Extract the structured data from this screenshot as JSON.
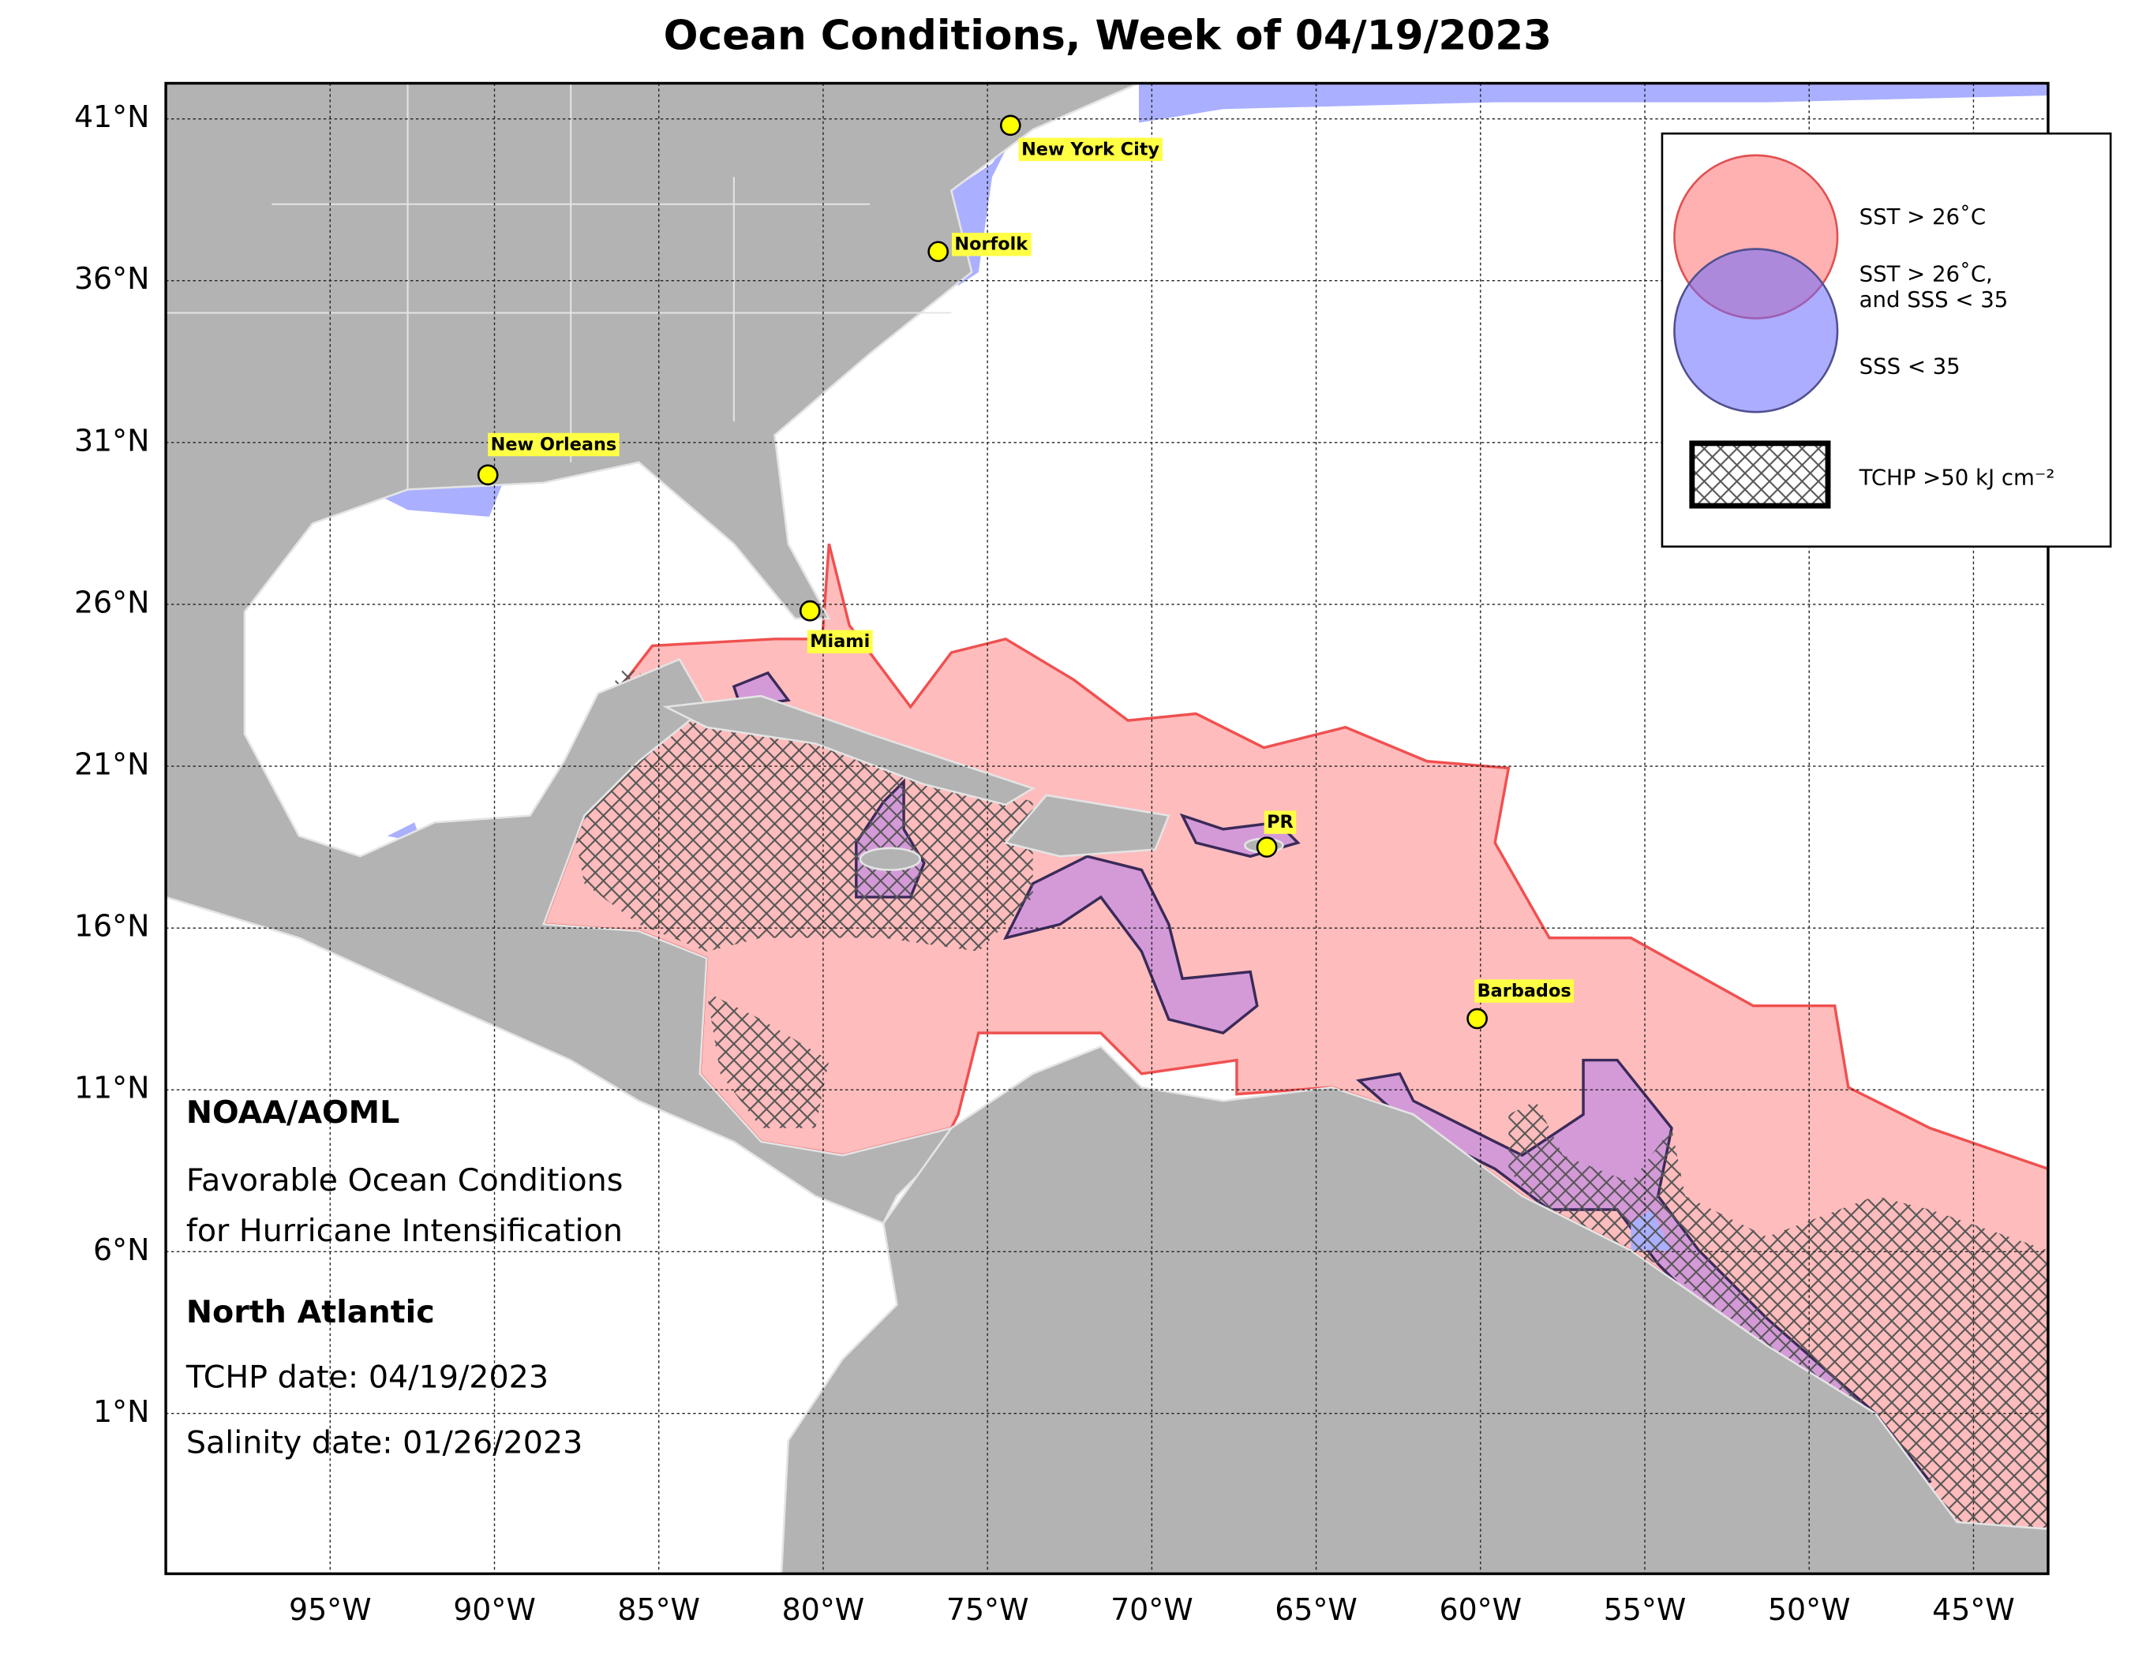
{
  "title": "Ocean Conditions, Week of 04/19/2023",
  "map": {
    "lon_range": [
      -100,
      -42.73
    ],
    "lat_range": [
      -3.95,
      42.1
    ],
    "lon_ticks": [
      {
        "value": -95,
        "label": "95°W"
      },
      {
        "value": -90,
        "label": "90°W"
      },
      {
        "value": -85,
        "label": "85°W"
      },
      {
        "value": -80,
        "label": "80°W"
      },
      {
        "value": -75,
        "label": "75°W"
      },
      {
        "value": -70,
        "label": "70°W"
      },
      {
        "value": -65,
        "label": "65°W"
      },
      {
        "value": -60,
        "label": "60°W"
      },
      {
        "value": -55,
        "label": "55°W"
      },
      {
        "value": -50,
        "label": "50°W"
      },
      {
        "value": -45,
        "label": "45°W"
      }
    ],
    "lat_ticks": [
      {
        "value": 1,
        "label": "1°N"
      },
      {
        "value": 6,
        "label": "6°N"
      },
      {
        "value": 11,
        "label": "11°N"
      },
      {
        "value": 16,
        "label": "16°N"
      },
      {
        "value": 21,
        "label": "21°N"
      },
      {
        "value": 26,
        "label": "26°N"
      },
      {
        "value": 31,
        "label": "31°N"
      },
      {
        "value": 36,
        "label": "36°N"
      },
      {
        "value": 41,
        "label": "41°N"
      }
    ],
    "cities": [
      {
        "name": "New York City",
        "lon": -74.3,
        "lat": 40.8
      },
      {
        "name": "Norfolk",
        "lon": -76.5,
        "lat": 36.9
      },
      {
        "name": "New Orleans",
        "lon": -90.2,
        "lat": 30.0
      },
      {
        "name": "Miami",
        "lon": -80.4,
        "lat": 25.8
      },
      {
        "name": "PR",
        "lon": -66.5,
        "lat": 18.5
      },
      {
        "name": "Barbados",
        "lon": -60.1,
        "lat": 13.2
      }
    ]
  },
  "legend": {
    "sst": "SST > 26˚C",
    "both": [
      "SST > 26˚C,",
      "and SSS < 35"
    ],
    "sss": "SSS < 35",
    "tchp": "TCHP >50 kJ cm⁻²"
  },
  "info": {
    "org": "NOAA/AOML",
    "subtitle": [
      "Favorable Ocean Conditions",
      "for Hurricane Intensification"
    ],
    "region": "North Atlantic",
    "tchp_date": "TCHP date: 04/19/2023",
    "salinity_date": "Salinity date: 01/26/2023"
  }
}
